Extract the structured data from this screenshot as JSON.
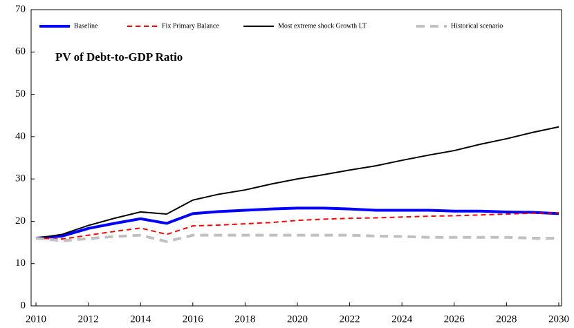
{
  "chart_data": {
    "type": "line",
    "title": "PV of Debt-to-GDP  Ratio",
    "x": [
      2010,
      2011,
      2012,
      2013,
      2014,
      2015,
      2016,
      2017,
      2018,
      2019,
      2020,
      2021,
      2022,
      2023,
      2024,
      2025,
      2026,
      2027,
      2028,
      2029,
      2030
    ],
    "series": [
      {
        "name": "Baseline",
        "color": "#0000ff",
        "values": [
          16,
          16.5,
          18.3,
          19.5,
          20.6,
          19.5,
          21.8,
          22.3,
          22.6,
          22.9,
          23.1,
          23.1,
          22.9,
          22.6,
          22.6,
          22.6,
          22.4,
          22.4,
          22.2,
          22.1,
          21.8
        ]
      },
      {
        "name": "Fix Primary Balance",
        "color": "#ff0000",
        "values": [
          16,
          15.8,
          16.7,
          17.6,
          18.4,
          16.9,
          18.9,
          19.1,
          19.4,
          19.7,
          20.2,
          20.5,
          20.7,
          20.8,
          21.0,
          21.2,
          21.3,
          21.5,
          21.7,
          21.9,
          22.0
        ]
      },
      {
        "name": "Most extreme shock Growth LT",
        "color": "#000000",
        "values": [
          16,
          16.9,
          19.0,
          20.7,
          22.2,
          21.7,
          25.0,
          26.4,
          27.4,
          28.8,
          30.0,
          31.0,
          32.1,
          33.1,
          34.4,
          35.6,
          36.7,
          38.2,
          39.5,
          41.0,
          42.3
        ]
      },
      {
        "name": "Historical scenario",
        "color": "#c0c0c0",
        "values": [
          16,
          15.4,
          15.9,
          16.4,
          16.7,
          15.2,
          16.7,
          16.7,
          16.7,
          16.7,
          16.7,
          16.7,
          16.7,
          16.5,
          16.4,
          16.2,
          16.2,
          16.2,
          16.2,
          16.0,
          16.0
        ]
      }
    ],
    "xlim": [
      2010,
      2030
    ],
    "xticks": [
      2010,
      2012,
      2014,
      2016,
      2018,
      2020,
      2022,
      2024,
      2026,
      2028,
      2030
    ],
    "ylim": [
      0,
      70
    ],
    "yticks": [
      0,
      10,
      20,
      30,
      40,
      50,
      60,
      70
    ]
  }
}
